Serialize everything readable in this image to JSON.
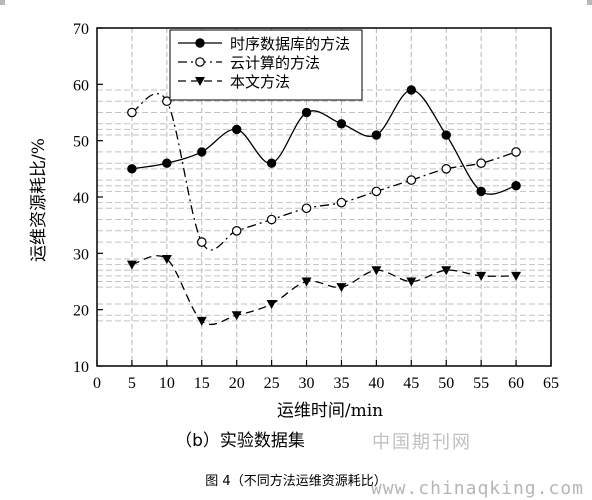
{
  "chart_data": {
    "type": "line",
    "title": "",
    "xlabel": "运维时间/min",
    "ylabel": "运维资源耗比/%",
    "xlim": [
      0,
      65
    ],
    "ylim": [
      10,
      70
    ],
    "xticks": [
      0,
      5,
      10,
      15,
      20,
      25,
      30,
      35,
      40,
      45,
      50,
      55,
      60,
      65
    ],
    "yticks": [
      10,
      20,
      30,
      40,
      50,
      60,
      70
    ],
    "legend_position": "top-right",
    "grid": "dashed gray reference lines",
    "x": [
      5,
      10,
      15,
      20,
      25,
      30,
      35,
      40,
      45,
      50,
      55,
      60
    ],
    "series": [
      {
        "name": "时序数据库的方法",
        "marker": "filled-circle",
        "line": "solid",
        "values": [
          45,
          46,
          48,
          52,
          46,
          55,
          53,
          51,
          59,
          51,
          41,
          42
        ]
      },
      {
        "name": "云计算的方法",
        "marker": "open-circle",
        "line": "dash-dot",
        "values": [
          55,
          57,
          32,
          34,
          36,
          38,
          39,
          41,
          43,
          45,
          46,
          48
        ]
      },
      {
        "name": "本文方法",
        "marker": "filled-triangle-down",
        "line": "dash",
        "values": [
          28,
          29,
          18,
          19,
          21,
          25,
          24,
          27,
          25,
          27,
          26,
          26
        ]
      }
    ]
  },
  "caption": {
    "subcaption": "（b）实验数据集",
    "figure": "图 4（不同方法运维资源耗比）"
  },
  "watermarks": {
    "site_cn": "中国期刊网",
    "site_url": "www.chinaqking.com"
  }
}
